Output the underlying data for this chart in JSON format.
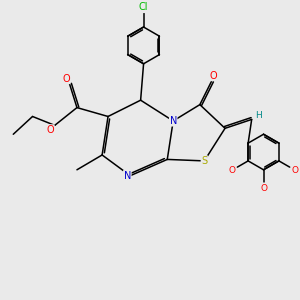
{
  "bg_color": "#eaeaea",
  "atom_colors": {
    "O": "#ff0000",
    "N": "#0000cc",
    "S": "#aaaa00",
    "Cl": "#00bb00",
    "H": "#008888",
    "C": "#000000"
  },
  "figsize": [
    3.0,
    3.0
  ],
  "dpi": 100,
  "bond_lw": 1.1,
  "font_size": 7.0
}
